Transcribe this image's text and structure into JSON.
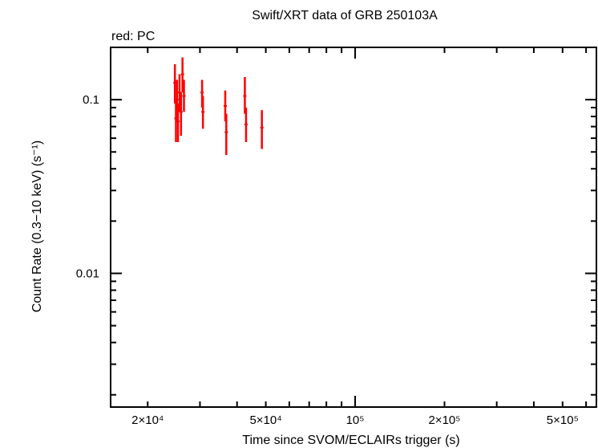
{
  "chart_data": {
    "type": "scatter",
    "title": "Swift/XRT data of GRB 250103A",
    "subtitle": "red: PC",
    "xlabel": "Time since SVOM/ECLAIRs trigger (s)",
    "ylabel": "Count Rate (0.3−10 keV) (s⁻¹)",
    "xscale": "log",
    "yscale": "log",
    "xlim": [
      15000,
      650000
    ],
    "ylim": [
      0.0017,
      0.2
    ],
    "x_ticks": [
      {
        "value": 20000,
        "label": "2×10⁴"
      },
      {
        "value": 50000,
        "label": "5×10⁴"
      },
      {
        "value": 100000,
        "label": "10⁵"
      },
      {
        "value": 200000,
        "label": "2×10⁵"
      },
      {
        "value": 500000,
        "label": "5×10⁵"
      }
    ],
    "y_ticks": [
      {
        "value": 0.1,
        "label": "0.1"
      },
      {
        "value": 0.01,
        "label": "0.01"
      }
    ],
    "grid": false,
    "series": [
      {
        "color": "#ff0000",
        "points": [
          {
            "x": 24700,
            "y": 0.125,
            "ylo": 0.095,
            "yhi": 0.16
          },
          {
            "x": 24900,
            "y": 0.078,
            "ylo": 0.057,
            "yhi": 0.1
          },
          {
            "x": 25100,
            "y": 0.1,
            "ylo": 0.075,
            "yhi": 0.13
          },
          {
            "x": 25300,
            "y": 0.075,
            "ylo": 0.057,
            "yhi": 0.095
          },
          {
            "x": 25600,
            "y": 0.11,
            "ylo": 0.085,
            "yhi": 0.14
          },
          {
            "x": 25900,
            "y": 0.085,
            "ylo": 0.062,
            "yhi": 0.11
          },
          {
            "x": 26200,
            "y": 0.14,
            "ylo": 0.11,
            "yhi": 0.175
          },
          {
            "x": 26500,
            "y": 0.105,
            "ylo": 0.085,
            "yhi": 0.13
          },
          {
            "x": 30500,
            "y": 0.11,
            "ylo": 0.09,
            "yhi": 0.13
          },
          {
            "x": 30700,
            "y": 0.085,
            "ylo": 0.068,
            "yhi": 0.105
          },
          {
            "x": 36500,
            "y": 0.092,
            "ylo": 0.075,
            "yhi": 0.113
          },
          {
            "x": 36800,
            "y": 0.065,
            "ylo": 0.048,
            "yhi": 0.083
          },
          {
            "x": 42500,
            "y": 0.105,
            "ylo": 0.083,
            "yhi": 0.135
          },
          {
            "x": 42900,
            "y": 0.072,
            "ylo": 0.057,
            "yhi": 0.09
          },
          {
            "x": 48500,
            "y": 0.069,
            "ylo": 0.052,
            "yhi": 0.087
          }
        ]
      }
    ]
  }
}
